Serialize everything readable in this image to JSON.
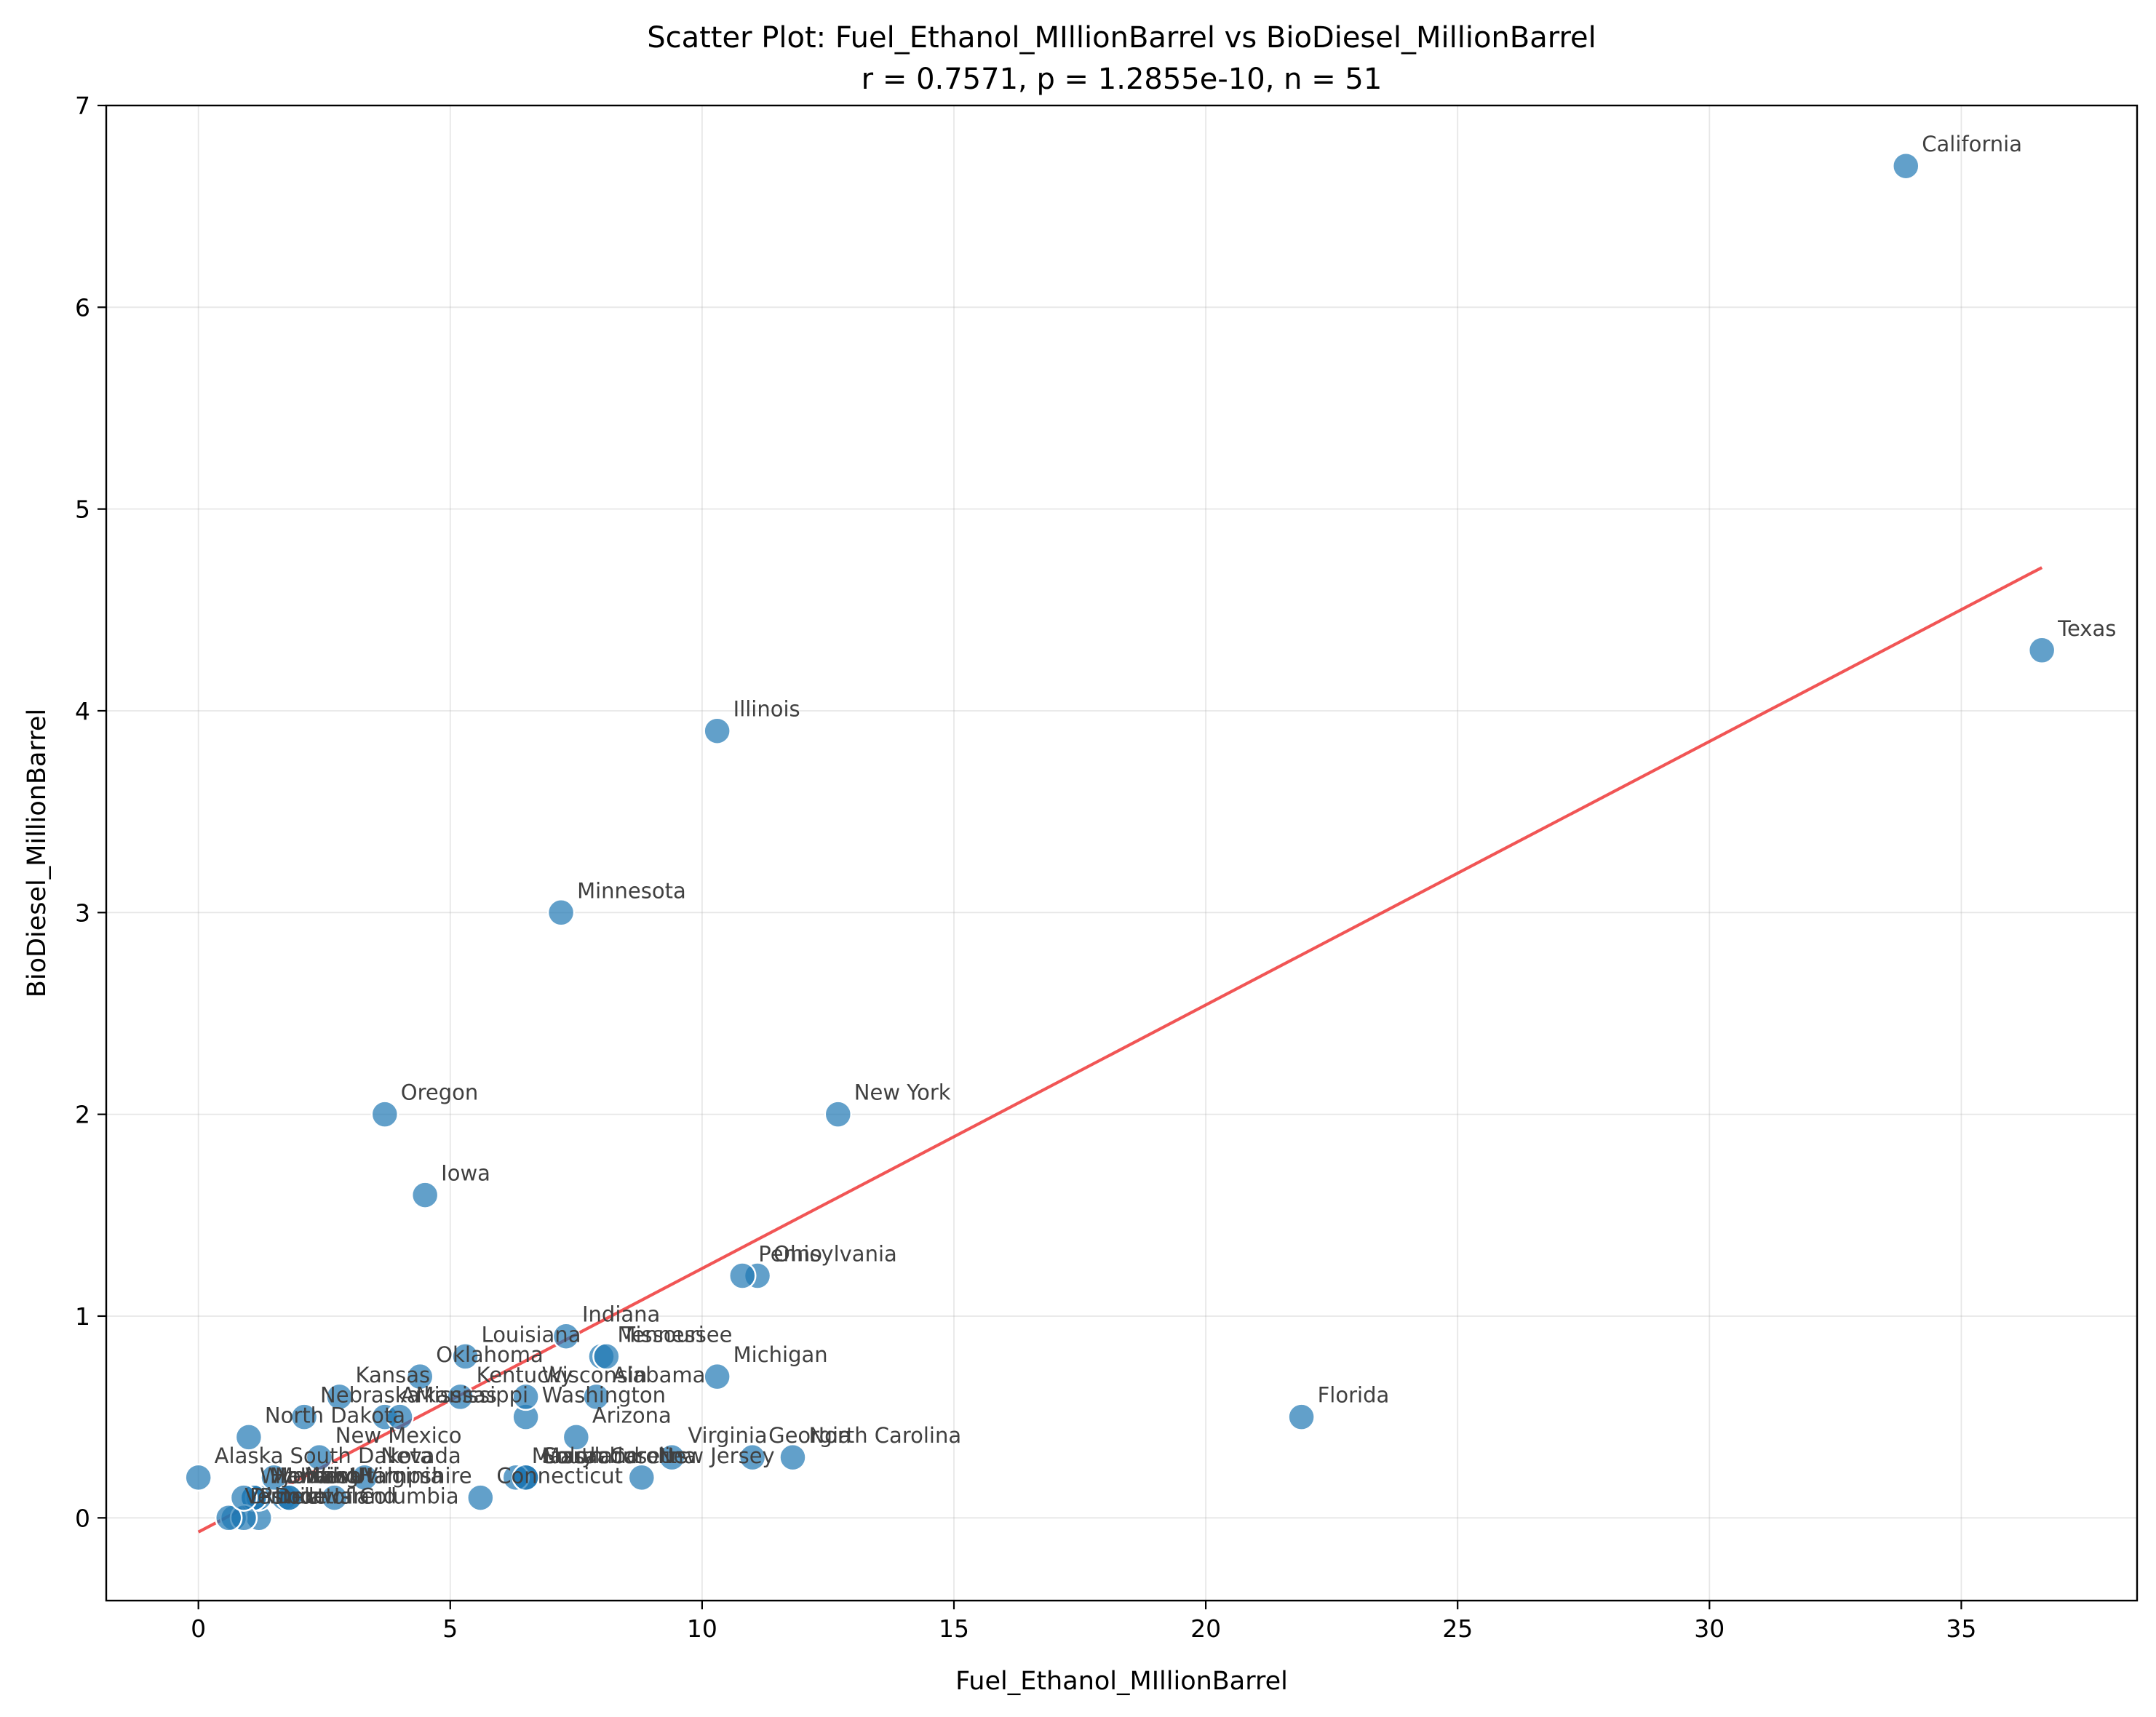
{
  "chart_data": {
    "type": "scatter",
    "title": "Scatter Plot: Fuel_Ethanol_MIllionBarrel vs BioDiesel_MillionBarrel",
    "subtitle": "r = 0.7571, p = 1.2855e-10, n = 51",
    "xlabel": "Fuel_Ethanol_MIllionBarrel",
    "ylabel": "BioDiesel_MillionBarrel",
    "xlim": [
      -1.83,
      38.49
    ],
    "ylim": [
      -0.41,
      7.0
    ],
    "xticks": [
      0,
      5,
      10,
      15,
      20,
      25,
      30,
      35
    ],
    "yticks": [
      0,
      1,
      2,
      3,
      4,
      5,
      6,
      7
    ],
    "grid": true,
    "colors": {
      "points": "#1f77b4",
      "trend_line": "#ee2a2a"
    },
    "trend_line": {
      "x": [
        0.0,
        36.6
      ],
      "y": [
        -0.07,
        4.71
      ]
    },
    "points": [
      {
        "label": "Alabama",
        "x": 7.9,
        "y": 0.6
      },
      {
        "label": "Alaska",
        "x": 0.0,
        "y": 0.2
      },
      {
        "label": "Arizona",
        "x": 7.5,
        "y": 0.4
      },
      {
        "label": "Arkansas",
        "x": 3.7,
        "y": 0.5
      },
      {
        "label": "California",
        "x": 33.9,
        "y": 6.7
      },
      {
        "label": "Colorado",
        "x": 6.5,
        "y": 0.2
      },
      {
        "label": "Connecticut",
        "x": 5.6,
        "y": 0.1
      },
      {
        "label": "Delaware",
        "x": 1.2,
        "y": 0.0
      },
      {
        "label": "District of Columbia",
        "x": 0.7,
        "y": 0.0
      },
      {
        "label": "Florida",
        "x": 21.9,
        "y": 0.5
      },
      {
        "label": "Georgia",
        "x": 11.0,
        "y": 0.3
      },
      {
        "label": "Hawaii",
        "x": 1.1,
        "y": 0.1
      },
      {
        "label": "Idaho",
        "x": 1.7,
        "y": 0.1
      },
      {
        "label": "Illinois",
        "x": 10.3,
        "y": 3.9
      },
      {
        "label": "Indiana",
        "x": 7.3,
        "y": 0.9
      },
      {
        "label": "Iowa",
        "x": 4.5,
        "y": 1.6
      },
      {
        "label": "Kansas",
        "x": 2.8,
        "y": 0.6
      },
      {
        "label": "Kentucky",
        "x": 5.2,
        "y": 0.6
      },
      {
        "label": "Louisiana",
        "x": 5.3,
        "y": 0.8
      },
      {
        "label": "Maine",
        "x": 1.2,
        "y": 0.1
      },
      {
        "label": "Maryland",
        "x": 6.5,
        "y": 0.2
      },
      {
        "label": "Massachusetts",
        "x": 6.3,
        "y": 0.2
      },
      {
        "label": "Michigan",
        "x": 10.3,
        "y": 0.7
      },
      {
        "label": "Minnesota",
        "x": 7.2,
        "y": 3.0
      },
      {
        "label": "Mississippi",
        "x": 4.0,
        "y": 0.5
      },
      {
        "label": "Missouri",
        "x": 8.0,
        "y": 0.8
      },
      {
        "label": "Montana",
        "x": 1.1,
        "y": 0.1
      },
      {
        "label": "Nebraska",
        "x": 2.1,
        "y": 0.5
      },
      {
        "label": "Nevada",
        "x": 3.3,
        "y": 0.2
      },
      {
        "label": "New Hampshire",
        "x": 1.8,
        "y": 0.1
      },
      {
        "label": "New Jersey",
        "x": 8.8,
        "y": 0.2
      },
      {
        "label": "New Mexico",
        "x": 2.4,
        "y": 0.3
      },
      {
        "label": "New York",
        "x": 12.7,
        "y": 2.0
      },
      {
        "label": "North Carolina",
        "x": 11.8,
        "y": 0.3
      },
      {
        "label": "North Dakota",
        "x": 1.0,
        "y": 0.4
      },
      {
        "label": "Ohio",
        "x": 11.1,
        "y": 1.2
      },
      {
        "label": "Oklahoma",
        "x": 4.4,
        "y": 0.7
      },
      {
        "label": "Oregon",
        "x": 3.7,
        "y": 2.0
      },
      {
        "label": "Pennsylvania",
        "x": 10.8,
        "y": 1.2
      },
      {
        "label": "Rhode Island",
        "x": 0.9,
        "y": 0.0
      },
      {
        "label": "South Carolina",
        "x": 6.5,
        "y": 0.2
      },
      {
        "label": "South Dakota",
        "x": 1.5,
        "y": 0.2
      },
      {
        "label": "Tennessee",
        "x": 8.1,
        "y": 0.8
      },
      {
        "label": "Texas",
        "x": 36.6,
        "y": 4.3
      },
      {
        "label": "Utah",
        "x": 2.7,
        "y": 0.1
      },
      {
        "label": "Vermont",
        "x": 0.6,
        "y": 0.0
      },
      {
        "label": "Virginia",
        "x": 9.4,
        "y": 0.3
      },
      {
        "label": "Washington",
        "x": 6.5,
        "y": 0.5
      },
      {
        "label": "West Virginia",
        "x": 1.8,
        "y": 0.1
      },
      {
        "label": "Wisconsin",
        "x": 6.5,
        "y": 0.6
      },
      {
        "label": "Wyoming",
        "x": 0.9,
        "y": 0.1
      }
    ]
  }
}
